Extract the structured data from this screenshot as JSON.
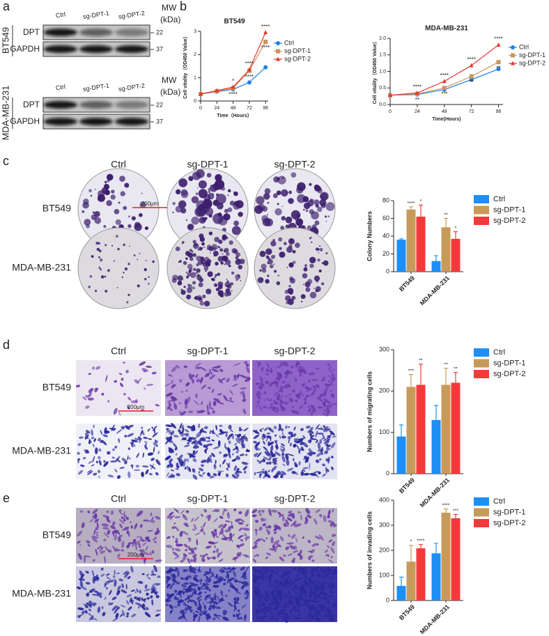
{
  "panel_labels": [
    "a",
    "b",
    "c",
    "d",
    "e"
  ],
  "western_blot": {
    "lanes": [
      "Ctrl",
      "sg-DPT-1",
      "sg-DPT-2"
    ],
    "mw_header": [
      "MW",
      "(kDa)"
    ],
    "blots": [
      {
        "cell_line": "BT549",
        "rows": [
          {
            "protein": "DPT",
            "mw": 22
          },
          {
            "protein": "GAPDH",
            "mw": 37
          }
        ]
      },
      {
        "cell_line": "MDA-MB-231",
        "rows": [
          {
            "protein": "DPT",
            "mw": 22
          },
          {
            "protein": "GAPDH",
            "mw": 37
          }
        ]
      }
    ]
  },
  "image_panels": [
    {
      "kind": "colony",
      "columns": [
        "Ctrl",
        "sg-DPT-1",
        "sg-DPT-2"
      ],
      "rows": [
        "BT549",
        "MDA-MB-231"
      ],
      "scale_bar": "200μm"
    },
    {
      "kind": "migration",
      "columns": [
        "Ctrl",
        "sg-DPT-1",
        "sg-DPT-2"
      ],
      "rows": [
        "BT549",
        "MDA-MB-231"
      ],
      "scale_bar": "200μm"
    },
    {
      "kind": "invasion",
      "columns": [
        "Ctrl",
        "sg-DPT-1",
        "sg-DPT-2"
      ],
      "rows": [
        "BT549",
        "MDA-MB-231"
      ],
      "scale_bar": "200μm"
    }
  ],
  "chart_data": [
    {
      "type": "line",
      "title": "BT549",
      "x_label": "Time（Hours）",
      "y_label": "Cell vitality（OD450 Value）",
      "x": [
        0,
        24,
        48,
        72,
        96
      ],
      "xlim": [
        0,
        100
      ],
      "xticks": [
        0,
        24,
        48,
        72,
        96
      ],
      "ylim": [
        0,
        3
      ],
      "yticks": [
        0,
        1,
        2,
        3
      ],
      "series": [
        {
          "name": "Ctrl",
          "color": "#1e7fe6",
          "marker": "circle",
          "values": [
            0.3,
            0.4,
            0.5,
            0.8,
            1.45
          ]
        },
        {
          "name": "sg-DPT-1",
          "color": "#c8955a",
          "marker": "square",
          "values": [
            0.3,
            0.42,
            0.55,
            1.3,
            2.55
          ],
          "significance": [
            null,
            null,
            "****",
            "****",
            "****"
          ]
        },
        {
          "name": "sg-DPT-2",
          "color": "#e8362f",
          "marker": "triangle",
          "values": [
            0.3,
            0.45,
            0.6,
            1.35,
            2.95
          ],
          "significance": [
            null,
            null,
            "*",
            "****",
            "****"
          ]
        }
      ]
    },
    {
      "type": "line",
      "title": "MDA-MB-231",
      "x_label": "Time(Hours)",
      "y_label": "Cell vitality（OD450 Value）",
      "x": [
        0,
        24,
        48,
        72,
        96
      ],
      "xlim": [
        0,
        100
      ],
      "xticks": [
        0,
        24,
        48,
        72,
        96
      ],
      "ylim": [
        0,
        2
      ],
      "yticks": [
        {
          "value": 0,
          "label": "0.0"
        },
        {
          "value": 0.5,
          "label": "0.5"
        },
        {
          "value": 1,
          "label": "1.0"
        },
        {
          "value": 1.5,
          "label": "1.5"
        },
        {
          "value": 2,
          "label": "2.0"
        }
      ],
      "series": [
        {
          "name": "Ctrl",
          "color": "#1e7fe6",
          "marker": "circle",
          "values": [
            0.28,
            0.3,
            0.45,
            0.75,
            1.07
          ]
        },
        {
          "name": "sg-DPT-1",
          "color": "#c8955a",
          "marker": "square",
          "values": [
            0.28,
            0.32,
            0.5,
            0.85,
            1.28
          ],
          "significance": [
            null,
            "**",
            "***",
            "**",
            "**"
          ]
        },
        {
          "name": "sg-DPT-2",
          "color": "#e8362f",
          "marker": "triangle",
          "values": [
            0.28,
            0.35,
            0.7,
            1.18,
            1.8
          ],
          "significance": [
            null,
            "****",
            "****",
            "****",
            "****"
          ]
        }
      ]
    },
    {
      "type": "bar",
      "y_label": "Colony Numbers",
      "categories": [
        "BT549",
        "MDA-MB-231"
      ],
      "ylim": [
        0,
        80
      ],
      "yticks": [
        0,
        20,
        40,
        60,
        80
      ],
      "series": [
        {
          "name": "Ctrl",
          "color": "#1e8ff5",
          "values": [
            36,
            12
          ],
          "errors": [
            1,
            6
          ]
        },
        {
          "name": "sg-DPT-1",
          "color": "#c89a5a",
          "values": [
            70,
            50
          ],
          "errors": [
            3,
            10
          ],
          "significance": [
            "****",
            "**"
          ]
        },
        {
          "name": "sg-DPT-2",
          "color": "#f23a3a",
          "values": [
            62,
            37
          ],
          "errors": [
            13,
            8
          ],
          "significance": [
            "*",
            "*"
          ]
        }
      ]
    },
    {
      "type": "bar",
      "y_label": "Numbers of migrating cells",
      "categories": [
        "BT549",
        "MDA-MB-231"
      ],
      "ylim": [
        0,
        300
      ],
      "yticks": [
        0,
        100,
        200,
        300
      ],
      "series": [
        {
          "name": "Ctrl",
          "color": "#1e8ff5",
          "values": [
            90,
            130
          ],
          "errors": [
            28,
            35
          ]
        },
        {
          "name": "sg-DPT-1",
          "color": "#c89a5a",
          "values": [
            210,
            215
          ],
          "errors": [
            30,
            40
          ],
          "significance": [
            "***",
            "**"
          ]
        },
        {
          "name": "sg-DPT-2",
          "color": "#f23a3a",
          "values": [
            215,
            220
          ],
          "errors": [
            50,
            25
          ],
          "significance": [
            "**",
            "**"
          ]
        }
      ]
    },
    {
      "type": "bar",
      "y_label": "Numbers of invading cells",
      "categories": [
        "BT549",
        "MDA-MB-231"
      ],
      "ylim": [
        0,
        400
      ],
      "yticks": [
        0,
        100,
        200,
        300,
        400
      ],
      "series": [
        {
          "name": "Ctrl",
          "color": "#1e8ff5",
          "values": [
            58,
            188
          ],
          "errors": [
            35,
            40
          ]
        },
        {
          "name": "sg-DPT-1",
          "color": "#c89a5a",
          "values": [
            155,
            350
          ],
          "errors": [
            65,
            15
          ],
          "significance": [
            "*",
            "****"
          ]
        },
        {
          "name": "sg-DPT-2",
          "color": "#f23a3a",
          "values": [
            208,
            328
          ],
          "errors": [
            15,
            15
          ],
          "significance": [
            "****",
            "***"
          ]
        }
      ]
    }
  ]
}
